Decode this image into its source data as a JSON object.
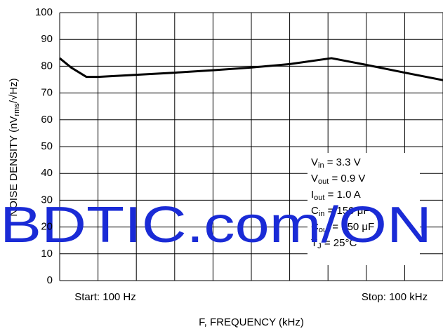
{
  "chart_data": {
    "type": "line",
    "ylabel": [
      "NOISE DENSITY (nV",
      "rms",
      "/√Hz)"
    ],
    "xlabel": "F, FREQUENCY (kHz)",
    "x_start_label": "Start: 100 Hz",
    "x_stop_label": "Stop: 100 kHz",
    "xlim": [
      0,
      10
    ],
    "xticks": [
      0,
      1,
      2,
      3,
      4,
      5,
      6,
      7,
      8,
      9,
      10
    ],
    "ylim": [
      0,
      100
    ],
    "yticks": [
      0,
      10,
      20,
      30,
      40,
      50,
      60,
      70,
      80,
      90,
      100
    ],
    "grid": true,
    "series": [
      {
        "name": "Noise",
        "color": "#000000",
        "x": [
          0,
          0.3,
          0.7,
          1,
          2,
          3,
          4,
          5,
          6,
          7.09,
          8,
          9,
          10
        ],
        "values": [
          83,
          79.5,
          76,
          76,
          76.8,
          77.6,
          78.5,
          79.5,
          80.8,
          83,
          80.5,
          77.6,
          74.8
        ]
      }
    ],
    "annotations": [
      [
        "V",
        "in",
        " = 3.3 V"
      ],
      [
        "V",
        "out",
        " = 0.9 V"
      ],
      [
        "I",
        "out",
        " = 1.0 A"
      ],
      [
        "C",
        "in",
        " = 150 μF"
      ],
      [
        "C",
        "out",
        " = 150 μF"
      ],
      [
        "T",
        "J",
        " = 25°C"
      ]
    ],
    "watermark": "BDTIC.com/ON"
  }
}
